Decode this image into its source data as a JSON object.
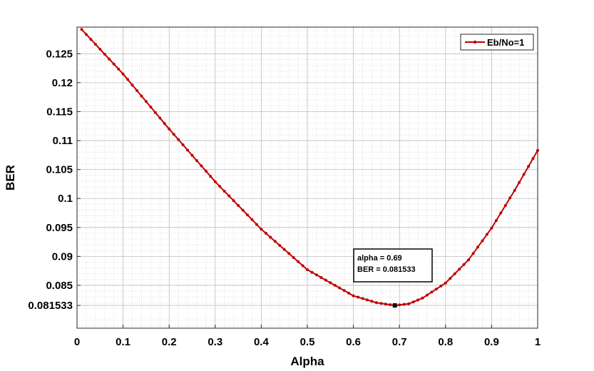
{
  "chart_data": {
    "type": "line",
    "xlabel": "Alpha",
    "ylabel": "BER",
    "xlim": [
      0,
      1
    ],
    "ylim": [
      0.0776,
      0.1296
    ],
    "xticks": [
      "0",
      "0.1",
      "0.2",
      "0.3",
      "0.4",
      "0.5",
      "0.6",
      "0.7",
      "0.8",
      "0.9",
      "1"
    ],
    "yticks": [
      "0.081533",
      "0.085",
      "0.09",
      "0.095",
      "0.1",
      "0.105",
      "0.11",
      "0.115",
      "0.12",
      "0.125"
    ],
    "grid": true,
    "minor_grid": true,
    "legend_position": "top-right",
    "series": [
      {
        "name": "Eb/No=1",
        "color": "#c00000",
        "marker": "dot",
        "x": [
          0.01,
          0.1,
          0.2,
          0.3,
          0.4,
          0.5,
          0.6,
          0.65,
          0.69,
          0.72,
          0.75,
          0.8,
          0.85,
          0.9,
          0.95,
          1.0
        ],
        "y": [
          0.1292,
          0.1215,
          0.112,
          0.1029,
          0.0947,
          0.0877,
          0.0832,
          0.082,
          0.081533,
          0.0818,
          0.0828,
          0.0854,
          0.0894,
          0.0949,
          0.1014,
          0.1083
        ]
      }
    ],
    "datatip": {
      "x": 0.69,
      "y": 0.081533,
      "line1": "alpha = 0.69",
      "line2": "BER = 0.081533"
    }
  }
}
